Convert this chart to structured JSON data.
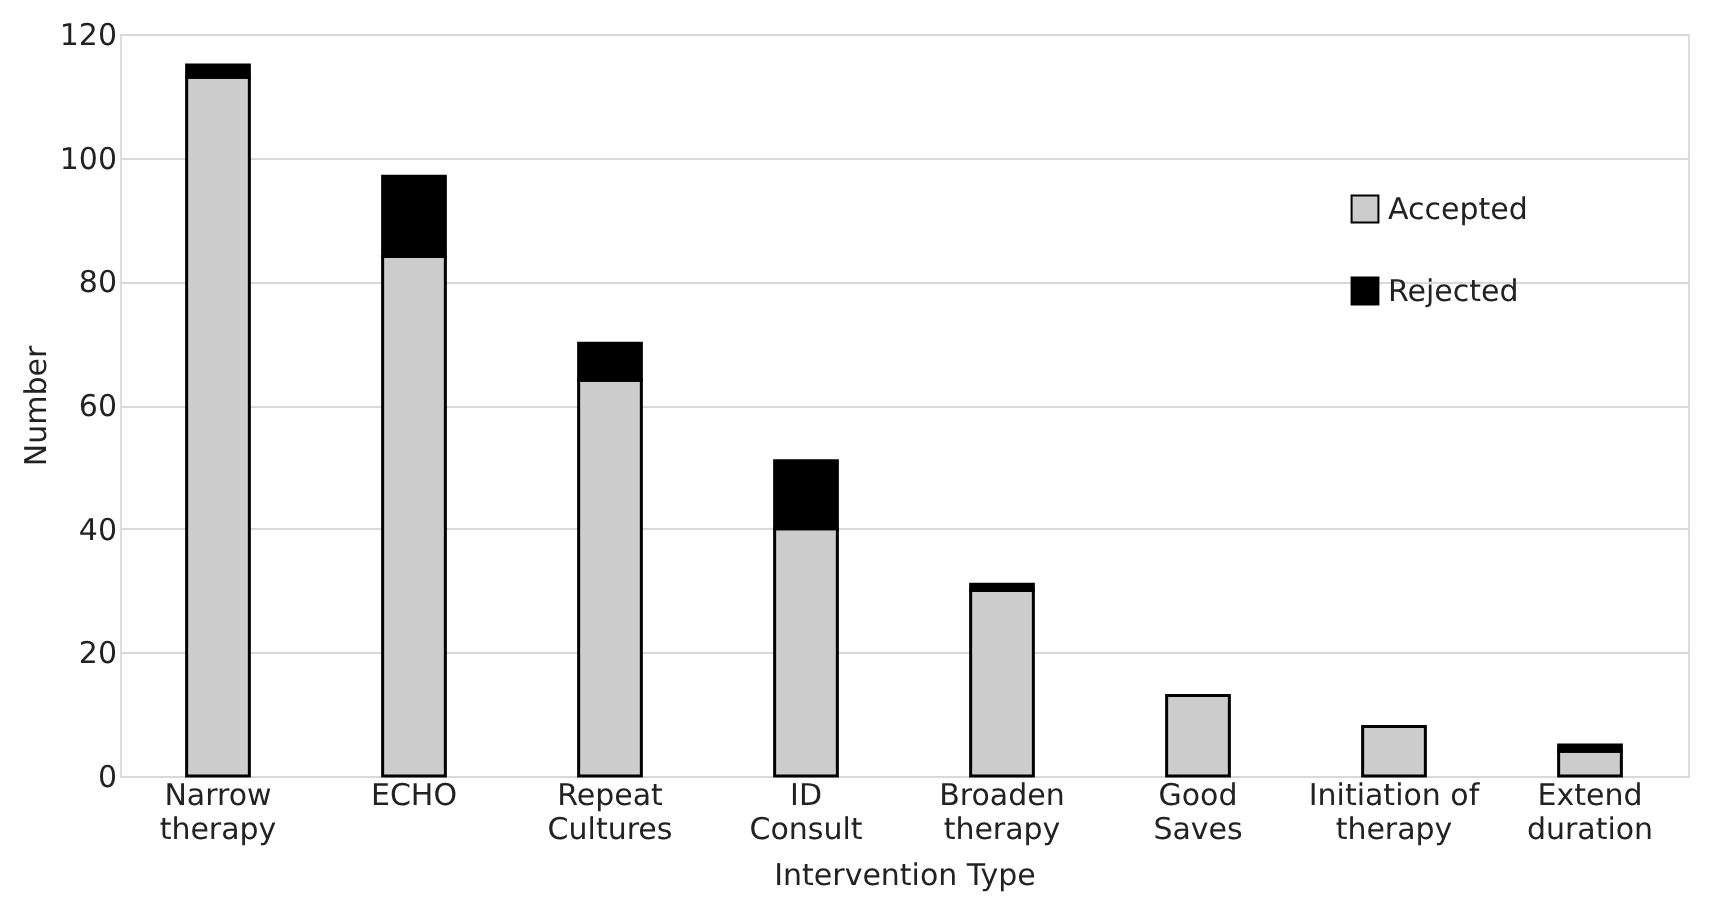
{
  "chart_data": {
    "type": "bar",
    "stacked": true,
    "xlabel": "Intervention Type",
    "ylabel": "Number",
    "categories": [
      "Narrow therapy",
      "ECHO",
      "Repeat Cultures",
      "ID Consult",
      "Broaden therapy",
      "Good Saves",
      "Initiation of therapy",
      "Extend duration"
    ],
    "series": [
      {
        "name": "Accepted",
        "color": "#cccccc",
        "values": [
          113,
          84,
          64,
          40,
          30,
          13,
          8,
          4
        ]
      },
      {
        "name": "Rejected",
        "color": "#000000",
        "values": [
          2,
          13,
          6,
          11,
          1,
          0,
          0,
          1
        ]
      }
    ],
    "ylim": [
      0,
      120
    ],
    "yticks": [
      0,
      20,
      40,
      60,
      80,
      100,
      120
    ],
    "grid": "y",
    "legend": "right"
  }
}
